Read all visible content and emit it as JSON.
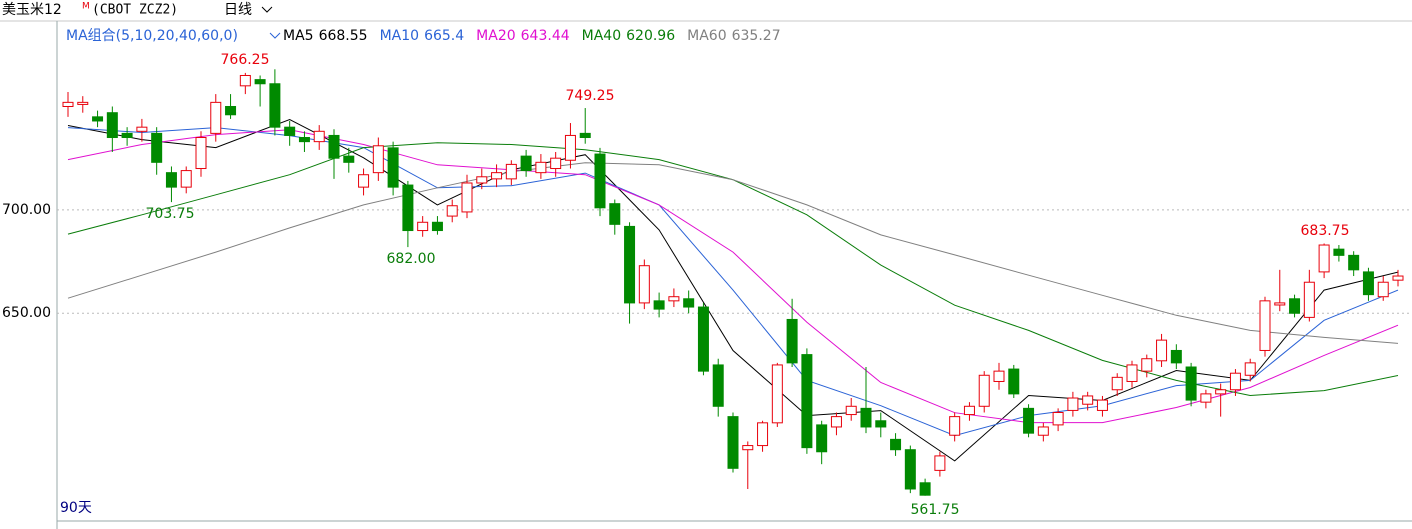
{
  "chart_data": {
    "type": "candlestick",
    "symbol": "美玉米12",
    "superscript": "M",
    "code": "(CBOT ZCZ2)",
    "period": "日线",
    "ma_group": "MA组合(5,10,20,40,60,0)",
    "range_label": "90天",
    "up_color": "#e8000b",
    "down_color": "#008a00",
    "ylim": [
      550,
      787
    ],
    "yticks": [
      {
        "value": 650,
        "label": "650.00"
      },
      {
        "value": 700,
        "label": "700.00"
      }
    ],
    "grid": true,
    "ohlc": [
      [
        750,
        757,
        745,
        752
      ],
      [
        751,
        755,
        747,
        752
      ],
      [
        745,
        748,
        740,
        743
      ],
      [
        747,
        750,
        728,
        735
      ],
      [
        737,
        740,
        731,
        735
      ],
      [
        738,
        744,
        733,
        740
      ],
      [
        737,
        740,
        717,
        723
      ],
      [
        718,
        721,
        703.75,
        711
      ],
      [
        711,
        721,
        708,
        719
      ],
      [
        720,
        738,
        716,
        735
      ],
      [
        737,
        756,
        733,
        752
      ],
      [
        750,
        756,
        744,
        746
      ],
      [
        760,
        766.25,
        756,
        765
      ],
      [
        763,
        765,
        750,
        761
      ],
      [
        761,
        768,
        736,
        740
      ],
      [
        740,
        743,
        731,
        736
      ],
      [
        735,
        738,
        728,
        733
      ],
      [
        733,
        741,
        729,
        738
      ],
      [
        736,
        739,
        715,
        725
      ],
      [
        726,
        730,
        718,
        723
      ],
      [
        711,
        720,
        707,
        717
      ],
      [
        718,
        735,
        714,
        731
      ],
      [
        730,
        733,
        707,
        711
      ],
      [
        712,
        714,
        682,
        690
      ],
      [
        690,
        697,
        687,
        694
      ],
      [
        694,
        697,
        688,
        690
      ],
      [
        697,
        705,
        694,
        702
      ],
      [
        699,
        717,
        696,
        713
      ],
      [
        713,
        720,
        710,
        716
      ],
      [
        715,
        722,
        711,
        718
      ],
      [
        715,
        724,
        712,
        722
      ],
      [
        726,
        729,
        716,
        719
      ],
      [
        718,
        727,
        715,
        723
      ],
      [
        720,
        728,
        716,
        725
      ],
      [
        724,
        742,
        720,
        736
      ],
      [
        737,
        749.25,
        732,
        735
      ],
      [
        727,
        730,
        697,
        701
      ],
      [
        703,
        705,
        688,
        693
      ],
      [
        692,
        694,
        645,
        655
      ],
      [
        655,
        676,
        652,
        673
      ],
      [
        656,
        660,
        648,
        652
      ],
      [
        656,
        662,
        653,
        658
      ],
      [
        657,
        661,
        650,
        653
      ],
      [
        653,
        655,
        620,
        622
      ],
      [
        625,
        628,
        600,
        605
      ],
      [
        600,
        602,
        573,
        575
      ],
      [
        584,
        588,
        565,
        586
      ],
      [
        586,
        598,
        583,
        597
      ],
      [
        597,
        626,
        595,
        625
      ],
      [
        647,
        657,
        624,
        626
      ],
      [
        630,
        633,
        582,
        585
      ],
      [
        596,
        598,
        577,
        583
      ],
      [
        595,
        602,
        591,
        600
      ],
      [
        601,
        609,
        598,
        605
      ],
      [
        604,
        624,
        592,
        595
      ],
      [
        598,
        602,
        590,
        595
      ],
      [
        589,
        592,
        581,
        584
      ],
      [
        584,
        586,
        563,
        565
      ],
      [
        568,
        570,
        561.75,
        562
      ],
      [
        574,
        583,
        571,
        581
      ],
      [
        591,
        602,
        588,
        600
      ],
      [
        601,
        607,
        598,
        605
      ],
      [
        605,
        622,
        602,
        620
      ],
      [
        617,
        626,
        613,
        622
      ],
      [
        623,
        625,
        609,
        611
      ],
      [
        604,
        606,
        590,
        592
      ],
      [
        591,
        597,
        588,
        595
      ],
      [
        596,
        604,
        593,
        602
      ],
      [
        603,
        612,
        600,
        609
      ],
      [
        606,
        612,
        603,
        610
      ],
      [
        603,
        610,
        600,
        608
      ],
      [
        613,
        621,
        610,
        619
      ],
      [
        617,
        627,
        614,
        625
      ],
      [
        622,
        630,
        619,
        628
      ],
      [
        627,
        640,
        624,
        637
      ],
      [
        632,
        635,
        623,
        626
      ],
      [
        624,
        626,
        605,
        608
      ],
      [
        607,
        613,
        604,
        611
      ],
      [
        611,
        616,
        600,
        613
      ],
      [
        613,
        623,
        610,
        621
      ],
      [
        620,
        628,
        617,
        626
      ],
      [
        632,
        658,
        629,
        656
      ],
      [
        654,
        671,
        651,
        655
      ],
      [
        657,
        659,
        648,
        650
      ],
      [
        648,
        671,
        646,
        665
      ],
      [
        670,
        683.75,
        667,
        683
      ],
      [
        681,
        683,
        675,
        678
      ],
      [
        678,
        680,
        668,
        671
      ],
      [
        670,
        672,
        656,
        659
      ],
      [
        658,
        668,
        656,
        665
      ],
      [
        666,
        671,
        663,
        668
      ]
    ],
    "series": [
      {
        "name": "MA5",
        "current": 668.55,
        "color": "#000000",
        "x": [
          0,
          5,
          10,
          15,
          20,
          25,
          30,
          35,
          40,
          45,
          50,
          55,
          60,
          65,
          70,
          75,
          80,
          85,
          90
        ],
        "values": [
          740.8,
          734,
          730.1,
          743.7,
          725.2,
          702.4,
          719.4,
          726.7,
          690.3,
          632,
          600.5,
          602.9,
          578.6,
          610.2,
          607.8,
          622.3,
          617.5,
          661.2,
          669.9
        ]
      },
      {
        "name": "MA10",
        "current": 665.4,
        "color": "#2b63d6",
        "x": [
          0,
          5,
          10,
          15,
          20,
          25,
          30,
          35,
          40,
          45,
          50,
          55,
          60,
          65,
          70,
          75,
          80,
          85,
          90
        ],
        "values": [
          739.8,
          737.4,
          739.8,
          735.9,
          730.1,
          710.7,
          711.7,
          717.8,
          702.4,
          661.2,
          617.5,
          605.3,
          590.8,
          600.5,
          605.3,
          615,
          617.5,
          646.6,
          661.2
        ]
      },
      {
        "name": "MA20",
        "current": 643.44,
        "color": "#e010d0",
        "x": [
          0,
          5,
          10,
          15,
          20,
          25,
          30,
          35,
          40,
          45,
          50,
          55,
          60,
          65,
          70,
          75,
          80,
          85,
          90
        ],
        "values": [
          724.3,
          731.6,
          736.4,
          738.8,
          731.6,
          721.8,
          719.4,
          717,
          702.4,
          679.6,
          645.6,
          616.5,
          601.9,
          597.1,
          597.1,
          604.4,
          614.1,
          629.6,
          644.2
        ]
      },
      {
        "name": "MA40",
        "current": 620.96,
        "color": "#0a7d0a",
        "x": [
          0,
          5,
          10,
          15,
          20,
          25,
          30,
          35,
          40,
          45,
          50,
          55,
          60,
          65,
          70,
          75,
          80,
          85,
          90
        ],
        "values": [
          688.3,
          697.6,
          707.3,
          717,
          730.1,
          732.5,
          731.6,
          729.1,
          724.3,
          714.6,
          697.6,
          673.3,
          653.9,
          641.7,
          627.2,
          617.5,
          610.2,
          612.6,
          619.9
        ]
      },
      {
        "name": "MA60",
        "current": 635.27,
        "color": "#808080",
        "x": [
          0,
          5,
          10,
          15,
          20,
          25,
          30,
          35,
          40,
          45,
          50,
          55,
          60,
          65,
          70,
          75,
          80,
          85,
          90
        ],
        "values": [
          657.3,
          668.4,
          679.6,
          691.3,
          702.4,
          710.7,
          718.4,
          722.8,
          721.8,
          714.6,
          702.4,
          687.9,
          678.2,
          668.4,
          658.7,
          649,
          641.7,
          638.3,
          635.4
        ]
      }
    ],
    "annotations": [
      {
        "value": 766.25,
        "label": "766.25",
        "color": "#e8000b"
      },
      {
        "value": 703.75,
        "label": "703.75",
        "color": "#0a7d0a"
      },
      {
        "value": 682,
        "label": "682.00",
        "color": "#0a7d0a"
      },
      {
        "value": 749.25,
        "label": "749.25",
        "color": "#e8000b"
      },
      {
        "value": 561.75,
        "label": "561.75",
        "color": "#0a7d0a"
      },
      {
        "value": 683.75,
        "label": "683.75",
        "color": "#e8000b"
      }
    ]
  }
}
